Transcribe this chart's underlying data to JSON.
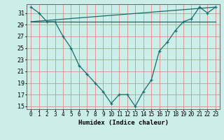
{
  "xlabel": "Humidex (Indice chaleur)",
  "bg_color": "#cceee8",
  "grid_color": "#dd9999",
  "line_color": "#1a6b6b",
  "xlim": [
    -0.5,
    23.5
  ],
  "ylim": [
    14.5,
    32.5
  ],
  "yticks": [
    15,
    17,
    19,
    21,
    23,
    25,
    27,
    29,
    31
  ],
  "xticks": [
    0,
    1,
    2,
    3,
    4,
    5,
    6,
    7,
    8,
    9,
    10,
    11,
    12,
    13,
    14,
    15,
    16,
    17,
    18,
    19,
    20,
    21,
    22,
    23
  ],
  "line1_x": [
    0,
    1,
    2,
    3,
    4,
    5,
    6,
    7,
    8,
    9,
    10,
    11,
    12,
    13,
    14,
    15,
    16,
    17,
    18,
    19,
    20,
    21,
    22,
    23
  ],
  "line1_y": [
    32,
    31,
    29.5,
    29.5,
    27,
    25,
    22,
    20.5,
    19,
    17.5,
    15.5,
    17,
    17,
    15,
    17.5,
    19.5,
    24.5,
    26,
    28,
    29.5,
    30,
    32,
    31,
    32
  ],
  "line2_x": [
    0,
    23
  ],
  "line2_y": [
    29.5,
    29.5
  ],
  "line3_x": [
    0,
    23
  ],
  "line3_y": [
    29.5,
    32
  ],
  "xlabel_fontsize": 6.5,
  "tick_fontsize": 5.5
}
